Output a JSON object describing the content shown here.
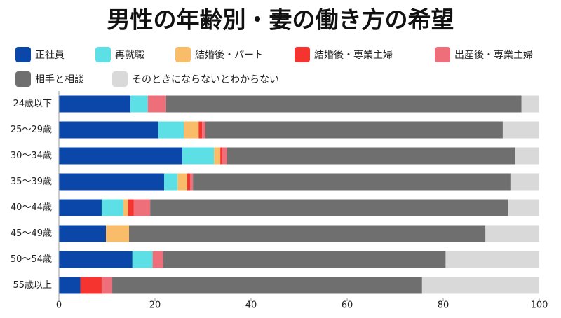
{
  "chart_data": {
    "type": "stacked-barh",
    "title": "男性の年齢別・妻の働き方の希望",
    "categories": [
      "24歳以下",
      "25〜29歳",
      "30〜34歳",
      "35〜39歳",
      "40〜44歳",
      "45〜49歳",
      "50〜54歳",
      "55歳以上"
    ],
    "series": [
      {
        "name": "正社員",
        "color": "#0b47a8",
        "values": [
          14.9,
          20.7,
          25.7,
          21.9,
          8.9,
          9.8,
          15.3,
          4.5
        ]
      },
      {
        "name": "再就職",
        "color": "#5ce0e6",
        "values": [
          3.6,
          5.3,
          6.6,
          2.8,
          4.5,
          0,
          4.2,
          0
        ]
      },
      {
        "name": "結婚後・パート",
        "color": "#f9bd6a",
        "values": [
          0,
          3.1,
          1.3,
          2.0,
          1.0,
          4.8,
          0,
          0
        ]
      },
      {
        "name": "結婚後・専業主婦",
        "color": "#f5332f",
        "values": [
          0,
          0.7,
          0.4,
          0.6,
          1.2,
          0,
          0,
          4.4
        ]
      },
      {
        "name": "出産後・専業主婦",
        "color": "#ee6e7a",
        "values": [
          3.8,
          0.7,
          1.0,
          0.6,
          3.4,
          0,
          2.2,
          2.2
        ]
      },
      {
        "name": "相手と相談",
        "color": "#6f6f6f",
        "values": [
          74.0,
          61.9,
          59.9,
          66.1,
          74.5,
          74.2,
          58.8,
          64.5
        ]
      },
      {
        "name": "そのときにならないとわからない",
        "color": "#d9d9d9",
        "values": [
          3.7,
          7.6,
          5.1,
          6.0,
          6.5,
          11.2,
          19.5,
          24.4
        ]
      }
    ],
    "xlim": [
      0,
      100
    ],
    "xticks": [
      0,
      20,
      40,
      60,
      80,
      100
    ],
    "grid": false
  }
}
